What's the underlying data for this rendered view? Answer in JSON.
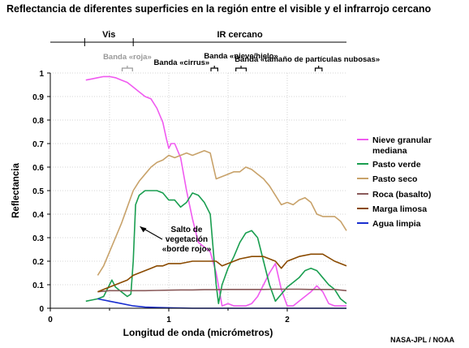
{
  "chart_data": {
    "type": "line",
    "title": "Reflectancia de diferentes superficies en la región entre el visible y el infrarrojo cercano",
    "xlabel": "Longitud de onda (micrómetros)",
    "ylabel": "Reflectancia",
    "xlim": [
      0,
      2.5
    ],
    "ylim": [
      0,
      1
    ],
    "x_ticks": [
      "0",
      "1",
      "2"
    ],
    "y_ticks": [
      "0",
      "0.1",
      "0.2",
      "0.3",
      "0.4",
      "0.5",
      "0.6",
      "0.7",
      "0.8",
      "0.9",
      "1"
    ],
    "grid": true,
    "legend_position": "right",
    "regions": [
      {
        "label": "Vis",
        "x_start": 0.29,
        "x_end": 0.7
      },
      {
        "label": "IR cercano",
        "x_start": 0.7,
        "x_end": 2.5
      }
    ],
    "bands": [
      {
        "label": "Banda «roja»",
        "x_start": 0.62,
        "x_end": 0.68,
        "color": "#f9d5de",
        "label_color": "#999999"
      },
      {
        "label": "Banda «cirrus»",
        "x_start": 1.37,
        "x_end": 1.4,
        "color": "#5de8e8",
        "label_color": "#000000"
      },
      {
        "label": "Banda «nieve/hielo»",
        "x_start": 1.58,
        "x_end": 1.64,
        "color": "#f07ef0",
        "label_color": "#000000"
      },
      {
        "label": "Banda «tamaño de partículas nubosas»",
        "x_start": 2.25,
        "x_end": 2.28,
        "color": "#9b4fd8",
        "label_color": "#000000"
      }
    ],
    "annotation": {
      "lines": [
        "Salto de",
        "vegetación",
        "«borde rojo»"
      ],
      "arrow_to_x": 0.73,
      "arrow_to_y": 0.34
    },
    "series": [
      {
        "name": "Nieve granular mediana",
        "color": "#f05af0",
        "x": [
          0.3,
          0.35,
          0.4,
          0.45,
          0.5,
          0.55,
          0.6,
          0.65,
          0.7,
          0.75,
          0.8,
          0.85,
          0.9,
          0.95,
          0.98,
          1.0,
          1.02,
          1.05,
          1.1,
          1.15,
          1.2,
          1.25,
          1.3,
          1.35,
          1.4,
          1.45,
          1.5,
          1.55,
          1.6,
          1.65,
          1.7,
          1.75,
          1.8,
          1.85,
          1.9,
          1.95,
          2.0,
          2.05,
          2.1,
          2.15,
          2.2,
          2.25,
          2.3,
          2.35,
          2.4,
          2.5
        ],
        "y": [
          0.97,
          0.975,
          0.98,
          0.985,
          0.985,
          0.98,
          0.97,
          0.96,
          0.94,
          0.92,
          0.9,
          0.89,
          0.85,
          0.79,
          0.72,
          0.68,
          0.7,
          0.7,
          0.64,
          0.5,
          0.38,
          0.28,
          0.26,
          0.24,
          0.15,
          0.01,
          0.02,
          0.01,
          0.01,
          0.01,
          0.02,
          0.05,
          0.1,
          0.15,
          0.19,
          0.08,
          0.01,
          0.01,
          0.03,
          0.05,
          0.07,
          0.095,
          0.07,
          0.02,
          0.01,
          0.01
        ]
      },
      {
        "name": "Pasto verde",
        "color": "#1a9e50",
        "x": [
          0.3,
          0.35,
          0.4,
          0.45,
          0.5,
          0.52,
          0.55,
          0.6,
          0.65,
          0.68,
          0.7,
          0.72,
          0.75,
          0.8,
          0.85,
          0.9,
          0.95,
          1.0,
          1.05,
          1.1,
          1.15,
          1.2,
          1.25,
          1.3,
          1.35,
          1.4,
          1.42,
          1.45,
          1.5,
          1.55,
          1.6,
          1.65,
          1.7,
          1.75,
          1.8,
          1.85,
          1.9,
          1.95,
          2.0,
          2.05,
          2.1,
          2.15,
          2.2,
          2.25,
          2.3,
          2.35,
          2.4,
          2.45,
          2.5
        ],
        "y": [
          0.03,
          0.035,
          0.04,
          0.05,
          0.1,
          0.12,
          0.09,
          0.07,
          0.05,
          0.06,
          0.2,
          0.44,
          0.48,
          0.5,
          0.5,
          0.5,
          0.49,
          0.46,
          0.46,
          0.43,
          0.45,
          0.49,
          0.48,
          0.45,
          0.4,
          0.1,
          0.02,
          0.1,
          0.17,
          0.22,
          0.28,
          0.32,
          0.33,
          0.3,
          0.2,
          0.1,
          0.03,
          0.06,
          0.09,
          0.11,
          0.13,
          0.16,
          0.17,
          0.16,
          0.13,
          0.1,
          0.08,
          0.04,
          0.02
        ]
      },
      {
        "name": "Pasto seco",
        "color": "#c8a26a",
        "x": [
          0.4,
          0.45,
          0.5,
          0.55,
          0.6,
          0.65,
          0.7,
          0.75,
          0.8,
          0.85,
          0.9,
          0.95,
          1.0,
          1.05,
          1.1,
          1.15,
          1.2,
          1.25,
          1.3,
          1.35,
          1.4,
          1.45,
          1.5,
          1.55,
          1.6,
          1.65,
          1.7,
          1.75,
          1.8,
          1.85,
          1.9,
          1.95,
          2.0,
          2.05,
          2.1,
          2.15,
          2.2,
          2.25,
          2.3,
          2.35,
          2.4,
          2.45,
          2.5
        ],
        "y": [
          0.14,
          0.18,
          0.24,
          0.3,
          0.36,
          0.43,
          0.5,
          0.54,
          0.57,
          0.6,
          0.62,
          0.63,
          0.65,
          0.64,
          0.65,
          0.66,
          0.65,
          0.66,
          0.67,
          0.66,
          0.55,
          0.56,
          0.57,
          0.58,
          0.58,
          0.6,
          0.59,
          0.57,
          0.55,
          0.52,
          0.48,
          0.44,
          0.45,
          0.44,
          0.46,
          0.47,
          0.45,
          0.4,
          0.39,
          0.39,
          0.39,
          0.37,
          0.33
        ]
      },
      {
        "name": "Roca (basalto)",
        "color": "#8a5a5a",
        "x": [
          0.4,
          0.5,
          0.6,
          0.7,
          0.8,
          0.9,
          1.0,
          1.1,
          1.2,
          1.3,
          1.4,
          1.5,
          1.6,
          1.7,
          1.8,
          1.9,
          2.0,
          2.1,
          2.2,
          2.3,
          2.4,
          2.5
        ],
        "y": [
          0.07,
          0.075,
          0.075,
          0.075,
          0.075,
          0.076,
          0.077,
          0.078,
          0.078,
          0.079,
          0.079,
          0.08,
          0.08,
          0.08,
          0.08,
          0.081,
          0.081,
          0.081,
          0.08,
          0.08,
          0.08,
          0.075
        ]
      },
      {
        "name": "Marga limosa",
        "color": "#8a4a00",
        "x": [
          0.4,
          0.45,
          0.5,
          0.55,
          0.6,
          0.65,
          0.7,
          0.75,
          0.8,
          0.85,
          0.9,
          0.95,
          1.0,
          1.1,
          1.2,
          1.3,
          1.4,
          1.45,
          1.5,
          1.6,
          1.7,
          1.8,
          1.9,
          1.95,
          2.0,
          2.1,
          2.2,
          2.3,
          2.4,
          2.5
        ],
        "y": [
          0.07,
          0.08,
          0.09,
          0.1,
          0.11,
          0.12,
          0.14,
          0.15,
          0.16,
          0.17,
          0.18,
          0.18,
          0.19,
          0.19,
          0.2,
          0.2,
          0.2,
          0.18,
          0.19,
          0.21,
          0.22,
          0.22,
          0.2,
          0.17,
          0.2,
          0.22,
          0.23,
          0.23,
          0.2,
          0.18
        ]
      },
      {
        "name": "Agua limpia",
        "color": "#1a2fd0",
        "x": [
          0.4,
          0.5,
          0.6,
          0.7,
          0.8,
          0.9,
          1.0,
          1.2,
          1.4,
          1.6,
          1.8,
          2.0,
          2.2,
          2.4,
          2.5
        ],
        "y": [
          0.04,
          0.03,
          0.02,
          0.01,
          0.005,
          0.003,
          0.002,
          0.0,
          0.0,
          0.0,
          0.0,
          0.0,
          0.0,
          0.0,
          0.0
        ]
      }
    ]
  },
  "credit": "NASA-JPL / NOAA"
}
